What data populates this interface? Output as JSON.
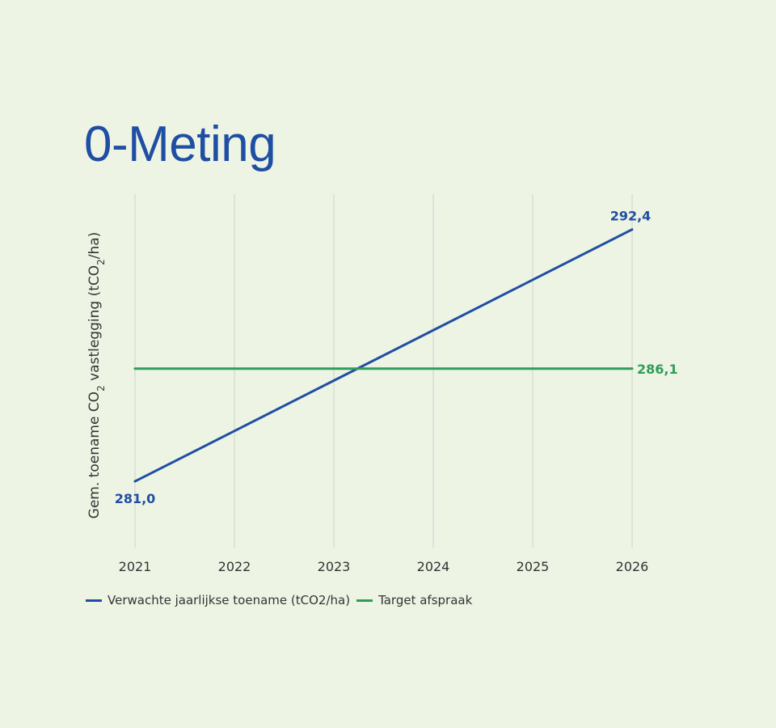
{
  "chart_data": {
    "type": "line",
    "title": "0-Meting",
    "ylabel": {
      "part1": "Gem. toename CO",
      "sub1": "2",
      "part2": " vastlegging  (tCO",
      "sub2": "2",
      "part3": "/ha)"
    },
    "x": [
      "2021",
      "2022",
      "2023",
      "2024",
      "2025",
      "2026"
    ],
    "ylim": [
      278.0,
      294.0
    ],
    "grid": "vertical",
    "legend_position": "bottom-left",
    "series": [
      {
        "name": "Verwachte jaarlijkse toename (tCO2/ha)",
        "color": "#1f4fa3",
        "values": [
          281.0,
          283.28,
          285.56,
          287.84,
          290.12,
          292.4
        ],
        "labels": [
          {
            "index": 0,
            "text": "281,0"
          },
          {
            "index": 5,
            "text": "292,4"
          }
        ]
      },
      {
        "name": "Target afspraak",
        "color": "#2e9d5a",
        "values": [
          286.1,
          286.1,
          286.1,
          286.1,
          286.1,
          286.1
        ],
        "labels": [
          {
            "index": 5,
            "text": "286,1"
          }
        ]
      }
    ]
  }
}
